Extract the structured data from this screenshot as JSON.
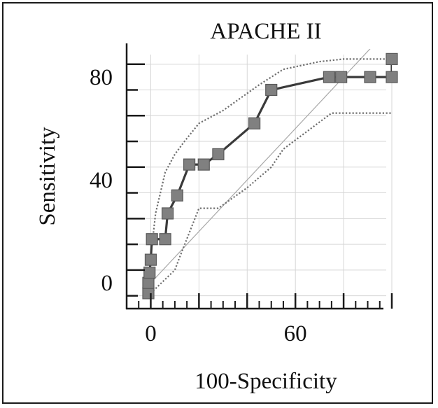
{
  "chart_data": {
    "type": "line",
    "title": "APACHE II",
    "xlabel": "100-Specificity",
    "ylabel": "Sensitivity",
    "xlim": [
      -10,
      100
    ],
    "ylim": [
      -10,
      92
    ],
    "x_major_ticks": [
      0,
      20,
      40,
      60,
      80,
      100
    ],
    "x_minor_ticks": [
      -5,
      5,
      10,
      15,
      25,
      30,
      35,
      45,
      50,
      55,
      65,
      70,
      75,
      85,
      90,
      95
    ],
    "x_tick_labels": [
      {
        "value": 0,
        "label": "0"
      },
      {
        "value": 60,
        "label": "60"
      }
    ],
    "y_major_ticks": [
      -5,
      5,
      15,
      25,
      35,
      45,
      55,
      65,
      75,
      85
    ],
    "y_tick_labels": [
      {
        "value": 0,
        "label": "0"
      },
      {
        "value": 40,
        "label": "40"
      },
      {
        "value": 80,
        "label": "80"
      }
    ],
    "grid": true,
    "series": [
      {
        "role": "roc",
        "x": [
          -1,
          -1,
          -0.5,
          0,
          0.5,
          6,
          7,
          11,
          16,
          22,
          28,
          43,
          50,
          74,
          79,
          91,
          100,
          100
        ],
        "y": [
          -4,
          0,
          4,
          9,
          17,
          17,
          27,
          34,
          46,
          46,
          50,
          62,
          75,
          80,
          80,
          80,
          80,
          87
        ]
      },
      {
        "role": "ci-upper",
        "x": [
          -1,
          0,
          2,
          6,
          10,
          14,
          20,
          30,
          45,
          55,
          70,
          80,
          100
        ],
        "y": [
          0,
          10,
          27,
          43,
          50,
          55,
          62,
          67,
          77,
          83,
          86,
          87,
          87
        ]
      },
      {
        "role": "ci-lower",
        "x": [
          0,
          10,
          12,
          20,
          28,
          40,
          50,
          55,
          75,
          100
        ],
        "y": [
          -4,
          5,
          10,
          29,
          29,
          37,
          45,
          52,
          66,
          66
        ]
      },
      {
        "role": "diagonal",
        "x": [
          0,
          100
        ],
        "y": [
          0,
          100
        ]
      }
    ]
  }
}
